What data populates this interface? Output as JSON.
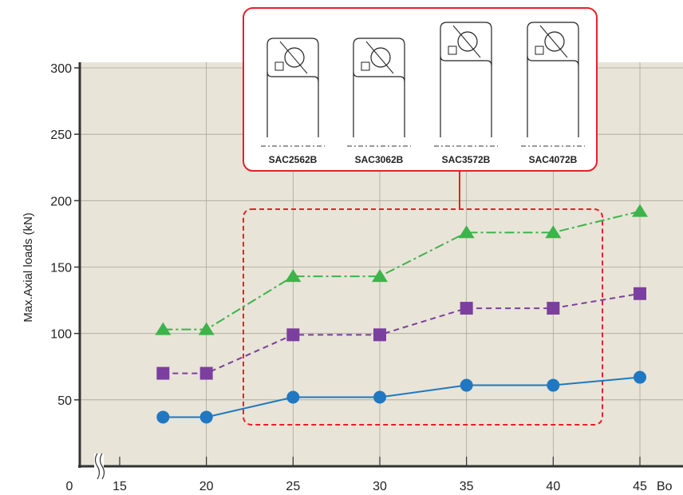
{
  "chart_data": {
    "type": "line",
    "ylabel": "Max.Axial loads (kN)",
    "xlabel": "Bo",
    "x_origin_label": "0",
    "xlim": [
      15,
      45
    ],
    "ylim": [
      0,
      300
    ],
    "x_ticks": [
      15,
      20,
      25,
      30,
      35,
      40,
      45
    ],
    "x_tick_labels": [
      "15",
      "20",
      "25",
      "30",
      "35",
      "40",
      "45"
    ],
    "y_ticks": [
      50,
      100,
      150,
      200,
      250,
      300
    ],
    "y_tick_labels": [
      "50",
      "100",
      "150",
      "200",
      "250",
      "300"
    ],
    "grid": true,
    "x": [
      17.5,
      20,
      25,
      30,
      35,
      40,
      45
    ],
    "series": [
      {
        "marker": "triangle",
        "line_style": "dash-dot",
        "color": "#3cb44a",
        "values": [
          103,
          103,
          143,
          143,
          176,
          176,
          192
        ]
      },
      {
        "marker": "square",
        "line_style": "dashed",
        "color": "#7b3f9e",
        "values": [
          70,
          70,
          99,
          99,
          119,
          119,
          130
        ]
      },
      {
        "marker": "circle",
        "line_style": "solid",
        "color": "#1f78c1",
        "values": [
          37,
          37,
          52,
          52,
          61,
          61,
          67
        ]
      }
    ],
    "inset": {
      "border_color": "#e8202a",
      "bearings": [
        "SAC2562B",
        "SAC3062B",
        "SAC3572B",
        "SAC4072B"
      ]
    },
    "highlight_region_color": "#e8202a"
  }
}
